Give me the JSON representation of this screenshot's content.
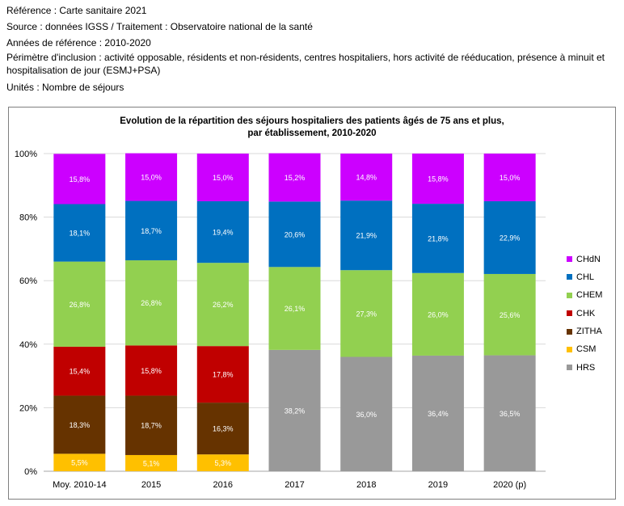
{
  "meta": {
    "reference": "Référence : Carte sanitaire 2021",
    "source": "Source : données IGSS / Traitement : Observatoire national de la santé",
    "years": "Années de référence : 2010-2020",
    "perimeter": "Périmètre d'inclusion : activité opposable, résidents et non-résidents, centres hospitaliers, hors activité de rééducation, présence à minuit et hospitalisation de jour (ESMJ+PSA)",
    "units": "Unités : Nombre de séjours"
  },
  "chart_data": {
    "type": "bar",
    "stacked": true,
    "title_line1": "Evolution de la répartition des séjours hospitaliers des patients âgés de 75 ans et plus,",
    "title_line2": "par établissement, 2010-2020",
    "categories": [
      "Moy. 2010-14",
      "2015",
      "2016",
      "2017",
      "2018",
      "2019",
      "2020 (p)"
    ],
    "y_ticks": [
      "0%",
      "20%",
      "40%",
      "60%",
      "80%",
      "100%"
    ],
    "ylim": [
      0,
      100
    ],
    "grid": true,
    "legend_position": "right",
    "series": [
      {
        "name": "CSM",
        "color": "#ffc000",
        "values": [
          5.5,
          5.1,
          5.3,
          null,
          null,
          null,
          null
        ],
        "labels": [
          "5,5%",
          "5,1%",
          "5,3%",
          "",
          "",
          "",
          ""
        ]
      },
      {
        "name": "ZITHA",
        "color": "#663300",
        "values": [
          18.3,
          18.7,
          16.3,
          null,
          null,
          null,
          null
        ],
        "labels": [
          "18,3%",
          "18,7%",
          "16,3%",
          "",
          "",
          "",
          ""
        ]
      },
      {
        "name": "CHK",
        "color": "#c00000",
        "values": [
          15.4,
          15.8,
          17.8,
          null,
          null,
          null,
          null
        ],
        "labels": [
          "15,4%",
          "15,8%",
          "17,8%",
          "",
          "",
          "",
          ""
        ]
      },
      {
        "name": "HRS",
        "color": "#999999",
        "values": [
          null,
          null,
          null,
          38.2,
          36.0,
          36.4,
          36.5
        ],
        "labels": [
          "",
          "",
          "",
          "38,2%",
          "36,0%",
          "36,4%",
          "36,5%"
        ]
      },
      {
        "name": "CHEM",
        "color": "#92d050",
        "values": [
          26.8,
          26.8,
          26.2,
          26.1,
          27.3,
          26.0,
          25.6
        ],
        "labels": [
          "26,8%",
          "26,8%",
          "26,2%",
          "26,1%",
          "27,3%",
          "26,0%",
          "25,6%"
        ]
      },
      {
        "name": "CHL",
        "color": "#0070c0",
        "values": [
          18.1,
          18.7,
          19.4,
          20.6,
          21.9,
          21.8,
          22.9
        ],
        "labels": [
          "18,1%",
          "18,7%",
          "19,4%",
          "20,6%",
          "21,9%",
          "21,8%",
          "22,9%"
        ]
      },
      {
        "name": "CHdN",
        "color": "#cc00ff",
        "values": [
          15.8,
          15.0,
          15.0,
          15.2,
          14.8,
          15.8,
          15.0
        ],
        "labels": [
          "15,8%",
          "15,0%",
          "15,0%",
          "15,2%",
          "14,8%",
          "15,8%",
          "15,0%"
        ]
      }
    ],
    "legend_order": [
      "CHdN",
      "CHL",
      "CHEM",
      "CHK",
      "ZITHA",
      "CSM",
      "HRS"
    ]
  }
}
